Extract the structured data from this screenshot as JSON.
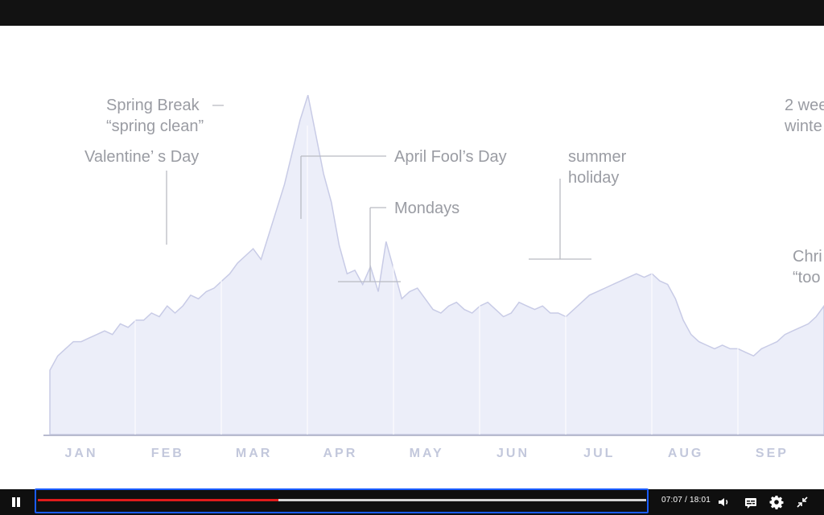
{
  "video": {
    "chart_data": {
      "type": "area",
      "categories": [
        "JAN",
        "FEB",
        "MAR",
        "APR",
        "MAY",
        "JUN",
        "JUL",
        "AUG",
        "SEP"
      ],
      "annotations": [
        {
          "id": "spring-break",
          "text": "Spring Break\n“spring clean”"
        },
        {
          "id": "valentines",
          "text": "Valentine’ s Day"
        },
        {
          "id": "april-fools",
          "text": "April Fool’s Day"
        },
        {
          "id": "mondays",
          "text": "Mondays"
        },
        {
          "id": "summer",
          "text": "summer\nholiday"
        },
        {
          "id": "winter",
          "text": "2 wee\nwinte"
        },
        {
          "id": "christmas",
          "text": "Chri\n“too"
        }
      ],
      "ylim": [
        0,
        100
      ],
      "series": [
        {
          "points": [
            [
              0,
              18
            ],
            [
              1,
              22
            ],
            [
              2,
              24
            ],
            [
              3,
              26
            ],
            [
              4,
              26
            ],
            [
              5,
              27
            ],
            [
              6,
              28
            ],
            [
              7,
              29
            ],
            [
              8,
              28
            ],
            [
              9,
              31
            ],
            [
              10,
              30
            ],
            [
              11,
              32
            ],
            [
              12,
              32
            ],
            [
              13,
              34
            ],
            [
              14,
              33
            ],
            [
              15,
              36
            ],
            [
              16,
              34
            ],
            [
              17,
              36
            ],
            [
              18,
              39
            ],
            [
              19,
              38
            ],
            [
              20,
              40
            ],
            [
              21,
              41
            ],
            [
              22,
              43
            ],
            [
              23,
              45
            ],
            [
              24,
              48
            ],
            [
              25,
              50
            ],
            [
              26,
              52
            ],
            [
              27,
              49
            ],
            [
              28,
              56
            ],
            [
              29,
              63
            ],
            [
              30,
              70
            ],
            [
              31,
              79
            ],
            [
              32,
              88
            ],
            [
              33,
              95
            ],
            [
              34,
              84
            ],
            [
              35,
              73
            ],
            [
              36,
              65
            ],
            [
              37,
              53
            ],
            [
              38,
              45
            ],
            [
              39,
              46
            ],
            [
              40,
              42
            ],
            [
              41,
              47
            ],
            [
              42,
              40
            ],
            [
              43,
              54
            ],
            [
              44,
              46
            ],
            [
              45,
              38
            ],
            [
              46,
              40
            ],
            [
              47,
              41
            ],
            [
              48,
              38
            ],
            [
              49,
              35
            ],
            [
              50,
              34
            ],
            [
              51,
              36
            ],
            [
              52,
              37
            ],
            [
              53,
              35
            ],
            [
              54,
              34
            ],
            [
              55,
              36
            ],
            [
              56,
              37
            ],
            [
              57,
              35
            ],
            [
              58,
              33
            ],
            [
              59,
              34
            ],
            [
              60,
              37
            ],
            [
              61,
              36
            ],
            [
              62,
              35
            ],
            [
              63,
              36
            ],
            [
              64,
              34
            ],
            [
              65,
              34
            ],
            [
              66,
              33
            ],
            [
              67,
              35
            ],
            [
              68,
              37
            ],
            [
              69,
              39
            ],
            [
              70,
              40
            ],
            [
              71,
              41
            ],
            [
              72,
              42
            ],
            [
              73,
              43
            ],
            [
              74,
              44
            ],
            [
              75,
              45
            ],
            [
              76,
              44
            ],
            [
              77,
              45
            ],
            [
              78,
              43
            ],
            [
              79,
              42
            ],
            [
              80,
              38
            ],
            [
              81,
              32
            ],
            [
              82,
              28
            ],
            [
              83,
              26
            ],
            [
              84,
              25
            ],
            [
              85,
              24
            ],
            [
              86,
              25
            ],
            [
              87,
              24
            ],
            [
              88,
              24
            ],
            [
              89,
              23
            ],
            [
              90,
              22
            ],
            [
              91,
              24
            ],
            [
              92,
              25
            ],
            [
              93,
              26
            ],
            [
              94,
              28
            ],
            [
              95,
              29
            ],
            [
              96,
              30
            ],
            [
              97,
              31
            ],
            [
              98,
              33
            ],
            [
              99,
              36
            ]
          ]
        }
      ]
    }
  },
  "player": {
    "time": "07:07 / 18:01",
    "progress": 0.396
  },
  "colors": {
    "accent": "#e01b1b",
    "focus": "#1a5cff",
    "area_fill": "#eceef9",
    "area_stroke": "#c8cbe6",
    "axis": "#b8bbcf",
    "month": "#c3c8dc"
  },
  "icons": {
    "play": "pause-icon",
    "volume": "volume-icon",
    "captions": "captions-icon",
    "settings": "gear-icon",
    "fullscreen": "exit-fullscreen-icon"
  }
}
